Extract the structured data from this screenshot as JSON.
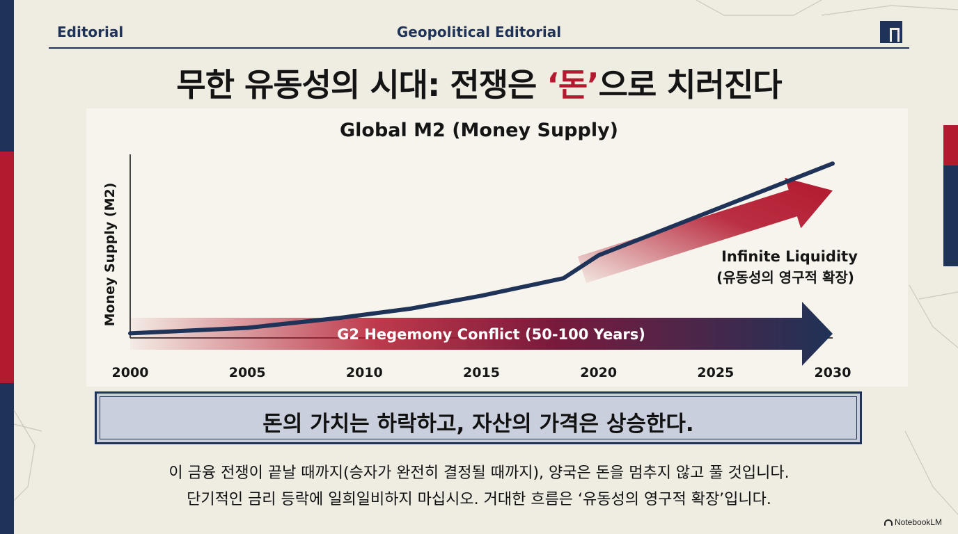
{
  "header": {
    "left": "Editorial",
    "center": "Geopolitical Editorial"
  },
  "title": {
    "before": "무한 유동성의 시대: 전쟁은 ",
    "accent": "‘돈’",
    "after": "으로 치러진다"
  },
  "colors": {
    "navy": "#1f3257",
    "red": "#b3192f",
    "background": "#efece2"
  },
  "chart_data": {
    "type": "line",
    "title": "Global M2 (Money Supply)",
    "xlabel": "",
    "ylabel": "Money Supply (M2)",
    "xlim": [
      2000,
      2030
    ],
    "x_ticks": [
      "2000",
      "2005",
      "2010",
      "2015",
      "2020",
      "2025",
      "2030"
    ],
    "y_axis_values_shown": false,
    "series": [
      {
        "color": "#1f3257",
        "x": [
          2000,
          2005,
          2009,
          2012,
          2015,
          2018.5,
          2020,
          2030
        ],
        "y": [
          5,
          11,
          22,
          32,
          46,
          65,
          90,
          190
        ]
      }
    ],
    "annotations": [
      {
        "kind": "arrow",
        "text": "G2 Hegemony Conflict (50-100 Years)",
        "x_start": 2000,
        "x_end": 2030
      },
      {
        "kind": "arrow",
        "text_line1": "Infinite Liquidity",
        "text_line2": "(유동성의 영구적 확장)",
        "x_start": 2019,
        "x_end": 2030
      }
    ]
  },
  "callout": {
    "text": "돈의 가치는 하락하고, 자산의 가격은 상승한다."
  },
  "body": {
    "line1": "이 금융 전쟁이 끝날 때까지(승자가 완전히 결정될 때까지), 양국은 돈을 멈추지 않고 풀 것입니다.",
    "line2": "단기적인 금리 등락에 일희일비하지 마십시오. 거대한 흐름은 ‘유동성의 영구적 확장’입니다."
  },
  "watermark": {
    "text": "NotebookLM"
  }
}
